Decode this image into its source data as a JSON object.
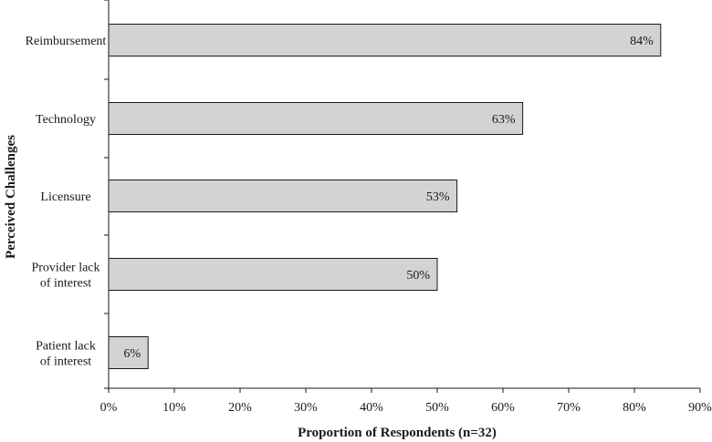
{
  "chart_data": {
    "type": "bar",
    "orientation": "horizontal",
    "categories": [
      [
        "Reimbursement"
      ],
      [
        "Technology"
      ],
      [
        "Licensure"
      ],
      [
        "Provider lack",
        "of interest"
      ],
      [
        "Patient lack",
        "of interest"
      ]
    ],
    "values": [
      84,
      63,
      53,
      50,
      6
    ],
    "data_labels": [
      "84%",
      "63%",
      "53%",
      "50%",
      "6%"
    ],
    "xlabel": "Proportion of Respondents (n=32)",
    "ylabel": "Perceived Challenges",
    "xlim": [
      0,
      90
    ],
    "xticks": [
      "0%",
      "10%",
      "20%",
      "30%",
      "40%",
      "50%",
      "60%",
      "70%",
      "80%",
      "90%"
    ],
    "grid": false,
    "bar_color": "#d3d3d3"
  }
}
